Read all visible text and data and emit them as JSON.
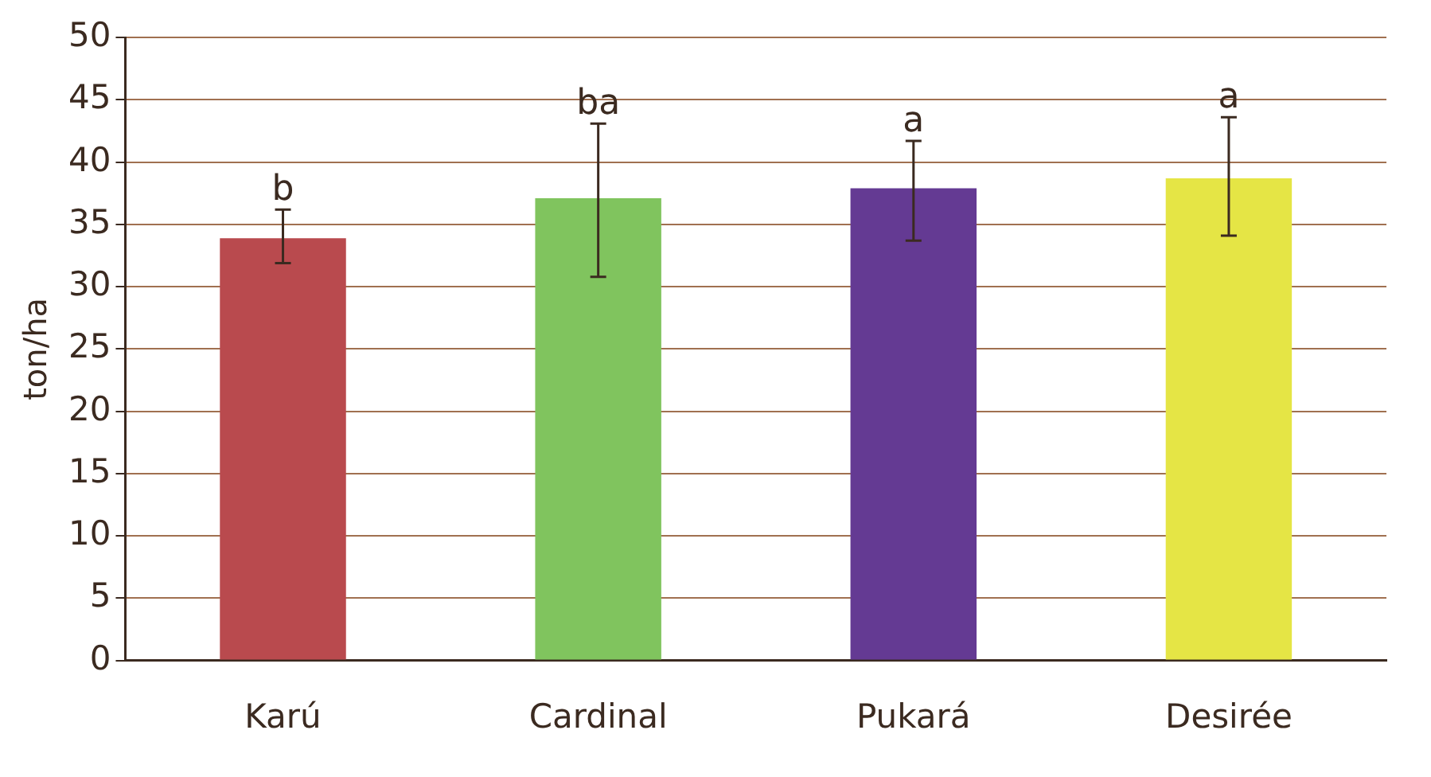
{
  "chart_data": {
    "type": "bar",
    "ylabel": "ton/ha",
    "categories": [
      "Karú",
      "Cardinal",
      "Pukará",
      "Desirée"
    ],
    "values": [
      33.9,
      37.1,
      37.9,
      38.7
    ],
    "colors": [
      "#b94a4e",
      "#80c45e",
      "#643a93",
      "#e5e545"
    ],
    "errors": [
      [
        31.9,
        36.2
      ],
      [
        30.8,
        43.1
      ],
      [
        33.7,
        41.7
      ],
      [
        34.1,
        43.6
      ]
    ],
    "ylim": [
      0,
      50
    ],
    "yticks": [
      0,
      5,
      10,
      15,
      20,
      25,
      30,
      35,
      40,
      45,
      50
    ],
    "grid": "y",
    "legend": false,
    "annotations": [
      {
        "text": "b",
        "x": "Karú",
        "y": 36.2
      },
      {
        "text": "ba",
        "x": "Cardinal",
        "y": 43.1
      },
      {
        "text": "a",
        "x": "Pukará",
        "y": 41.7
      },
      {
        "text": "a",
        "x": "Desirée",
        "y": 43.6
      }
    ]
  }
}
